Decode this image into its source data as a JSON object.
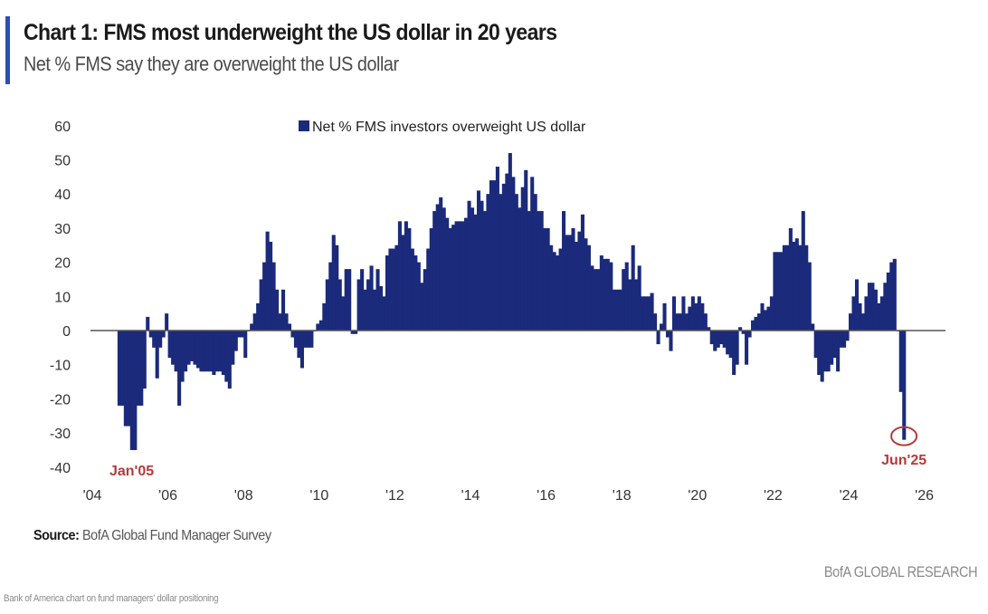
{
  "header": {
    "title": "Chart 1: FMS most underweight the US dollar in 20 years",
    "subtitle": "Net % FMS say they are overweight the US dollar",
    "accent_color": "#2a4fb8"
  },
  "footer": {
    "source_label": "Source:",
    "source_text": "BofA Global Fund Manager Survey",
    "brand": "BofA GLOBAL RESEARCH",
    "caption": "Bank of America chart on fund managers' dollar positioning"
  },
  "chart_data": {
    "type": "bar",
    "title": "Chart 1: FMS most underweight the US dollar in 20 years",
    "subtitle": "Net % FMS say they are overweight the US dollar",
    "xlabel": "",
    "ylabel": "",
    "ylim": [
      -40,
      60
    ],
    "xlim": [
      2004,
      2026
    ],
    "yticks": [
      60,
      50,
      40,
      30,
      20,
      10,
      0,
      -10,
      -20,
      -30,
      -40
    ],
    "xticks": [
      {
        "year": 2004,
        "label": "'04"
      },
      {
        "year": 2006,
        "label": "'06"
      },
      {
        "year": 2008,
        "label": "'08"
      },
      {
        "year": 2010,
        "label": "'10"
      },
      {
        "year": 2012,
        "label": "'12"
      },
      {
        "year": 2014,
        "label": "'14"
      },
      {
        "year": 2016,
        "label": "'16"
      },
      {
        "year": 2018,
        "label": "'18"
      },
      {
        "year": 2020,
        "label": "'20"
      },
      {
        "year": 2022,
        "label": "'22"
      },
      {
        "year": 2024,
        "label": "'24"
      },
      {
        "year": 2026,
        "label": "'26"
      }
    ],
    "grid": false,
    "legend": {
      "position": "top-center",
      "entries": [
        "Net % FMS investors overweight US dollar"
      ]
    },
    "series": [
      {
        "name": "Net % FMS investors overweight US dollar",
        "color": "#1b2a7a",
        "start": "2004-09",
        "frequency": "monthly",
        "values": [
          -22,
          -22,
          -28,
          -28,
          -35,
          -35,
          -22,
          -22,
          -17,
          4,
          -2,
          -5,
          -14,
          -5,
          -2,
          5,
          -8,
          -10,
          -12,
          -22,
          -15,
          -12,
          -10,
          -9,
          -10,
          -11,
          -12,
          -12,
          -12,
          -12,
          -13,
          -12,
          -12,
          -13,
          -15,
          -17,
          -10,
          -6,
          -2,
          -2,
          -8,
          0,
          2,
          5,
          8,
          15,
          20,
          29,
          26,
          20,
          12,
          5,
          12,
          5,
          2,
          -2,
          -5,
          -8,
          -11,
          -5,
          -5,
          -5,
          0,
          2,
          3,
          8,
          15,
          20,
          28,
          25,
          15,
          10,
          18,
          18,
          -1,
          -1,
          15,
          18,
          12,
          15,
          19,
          12,
          18,
          13,
          10,
          22,
          24,
          24,
          25,
          32,
          28,
          32,
          30,
          24,
          22,
          20,
          14,
          18,
          24,
          30,
          35,
          37,
          39,
          36,
          33,
          30,
          31,
          32,
          32,
          32,
          33,
          38,
          36,
          34,
          41,
          38,
          35,
          40,
          44,
          44,
          48,
          40,
          43,
          46,
          52,
          45,
          40,
          36,
          42,
          47,
          35,
          45,
          40,
          35,
          35,
          30,
          30,
          25,
          23,
          22,
          24,
          35,
          28,
          28,
          30,
          26,
          29,
          34,
          27,
          25,
          19,
          18,
          18,
          22,
          21,
          21,
          20,
          12,
          12,
          12,
          18,
          20,
          15,
          25,
          15,
          19,
          10,
          10,
          10,
          11,
          5,
          -4,
          2,
          8,
          -2,
          -6,
          10,
          5,
          5,
          10,
          5,
          7,
          10,
          8,
          10,
          8,
          5,
          1,
          -4,
          -6,
          -5,
          -4,
          -5,
          -7,
          -8,
          -13,
          -10,
          1,
          -1,
          -10,
          -2,
          3,
          4,
          5,
          8,
          6,
          7,
          10,
          23,
          23,
          23,
          25,
          25,
          30,
          26,
          27,
          25,
          35,
          25,
          20,
          2,
          -8,
          -13,
          -15,
          -12,
          -12,
          -10,
          -8,
          -12,
          -5,
          -5,
          -3,
          5,
          10,
          15,
          8,
          5,
          10,
          14,
          14,
          12,
          8,
          10,
          14,
          17,
          20,
          21,
          0,
          -18,
          -32
        ]
      }
    ],
    "annotations": [
      {
        "label": "Jan'05",
        "year": 2005.0,
        "value": -35,
        "color": "#b53a3a"
      },
      {
        "label": "Jun'25",
        "year": 2025.42,
        "value": -32,
        "color": "#b53a3a",
        "circled": true
      }
    ]
  }
}
